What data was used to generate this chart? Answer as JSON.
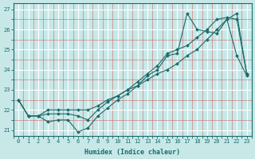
{
  "xlabel": "Humidex (Indice chaleur)",
  "background_color": "#c8e8e8",
  "grid_color_major": "#ffffff",
  "grid_color_minor": "#e08080",
  "line_color": "#1a6b6b",
  "xlim": [
    -0.5,
    23.5
  ],
  "ylim": [
    20.7,
    27.3
  ],
  "yticks": [
    21,
    22,
    23,
    24,
    25,
    26,
    27
  ],
  "xticks": [
    0,
    1,
    2,
    3,
    4,
    5,
    6,
    7,
    8,
    9,
    10,
    11,
    12,
    13,
    14,
    15,
    16,
    17,
    18,
    19,
    20,
    21,
    22,
    23
  ],
  "line1_x": [
    0,
    1,
    2,
    3,
    4,
    5,
    6,
    7,
    8,
    9,
    10,
    11,
    12,
    13,
    14,
    15,
    16,
    17,
    18,
    19,
    20,
    21,
    22,
    23
  ],
  "line1_y": [
    22.5,
    21.7,
    21.7,
    21.4,
    21.5,
    21.5,
    20.9,
    21.1,
    21.7,
    22.1,
    22.5,
    22.8,
    23.2,
    23.7,
    24.0,
    24.7,
    24.8,
    26.8,
    26.0,
    25.9,
    25.8,
    26.5,
    24.7,
    23.7
  ],
  "line2_x": [
    0,
    1,
    2,
    3,
    4,
    5,
    6,
    7,
    8,
    9,
    10,
    11,
    12,
    13,
    14,
    15,
    16,
    17,
    18,
    19,
    20,
    21,
    22,
    23
  ],
  "line2_y": [
    22.5,
    21.7,
    21.7,
    21.8,
    21.8,
    21.8,
    21.7,
    21.5,
    22.0,
    22.4,
    22.7,
    23.0,
    23.4,
    23.8,
    24.2,
    24.8,
    25.0,
    25.2,
    25.6,
    26.0,
    26.5,
    26.6,
    26.5,
    23.8
  ],
  "line3_x": [
    0,
    1,
    2,
    3,
    4,
    5,
    6,
    7,
    8,
    9,
    10,
    11,
    12,
    13,
    14,
    15,
    16,
    17,
    18,
    19,
    20,
    21,
    22,
    23
  ],
  "line3_y": [
    22.5,
    21.7,
    21.7,
    22.0,
    22.0,
    22.0,
    22.0,
    22.0,
    22.2,
    22.5,
    22.7,
    23.0,
    23.2,
    23.5,
    23.8,
    24.0,
    24.3,
    24.7,
    25.0,
    25.5,
    26.0,
    26.5,
    26.8,
    23.8
  ],
  "tick_fontsize": 5.0,
  "xlabel_fontsize": 6.0,
  "marker_size": 2.0,
  "linewidth": 0.8
}
